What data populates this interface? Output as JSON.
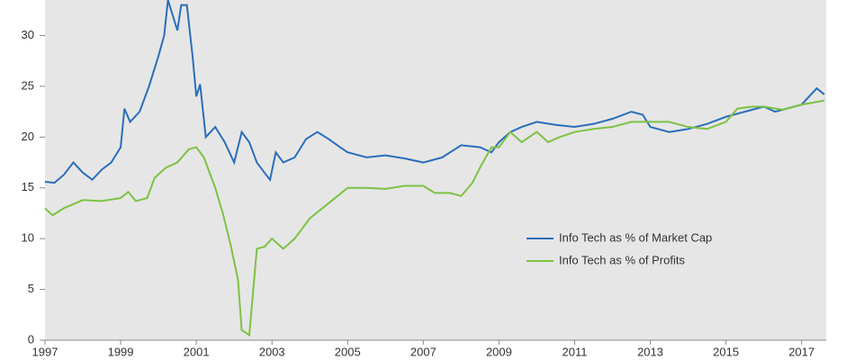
{
  "chart_data": {
    "type": "line",
    "xlim": [
      1997,
      2017.65
    ],
    "xticks": [
      1997,
      1999,
      2001,
      2003,
      2005,
      2007,
      2009,
      2011,
      2013,
      2015,
      2017
    ],
    "ylim": [
      0,
      33.5
    ],
    "yticks": [
      0,
      5,
      10,
      15,
      20,
      25,
      30
    ],
    "legend_position": "right",
    "series": [
      {
        "name": "Info Tech as % of Market Cap",
        "color": "#2a6ebb",
        "x": [
          1997.0,
          1997.25,
          1997.5,
          1997.75,
          1998.0,
          1998.25,
          1998.5,
          1998.75,
          1999.0,
          1999.1,
          1999.25,
          1999.5,
          1999.75,
          2000.0,
          2000.15,
          2000.25,
          2000.5,
          2000.6,
          2000.75,
          2000.9,
          2001.0,
          2001.1,
          2001.25,
          2001.5,
          2001.75,
          2002.0,
          2002.2,
          2002.4,
          2002.6,
          2002.8,
          2002.95,
          2003.1,
          2003.3,
          2003.6,
          2003.9,
          2004.2,
          2004.5,
          2004.8,
          2005.0,
          2005.5,
          2006.0,
          2006.5,
          2007.0,
          2007.5,
          2008.0,
          2008.5,
          2008.8,
          2009.0,
          2009.3,
          2009.6,
          2010.0,
          2010.5,
          2011.0,
          2011.5,
          2012.0,
          2012.5,
          2012.8,
          2013.0,
          2013.5,
          2014.0,
          2014.5,
          2015.0,
          2015.5,
          2016.0,
          2016.3,
          2016.6,
          2017.0,
          2017.4,
          2017.6
        ],
        "values": [
          15.6,
          15.5,
          16.3,
          17.5,
          16.5,
          15.8,
          16.8,
          17.5,
          19.0,
          22.8,
          21.5,
          22.5,
          25.0,
          28.0,
          30.0,
          33.5,
          30.5,
          33.0,
          33.0,
          28.0,
          24.0,
          25.2,
          20.0,
          21.0,
          19.5,
          17.5,
          20.5,
          19.5,
          17.5,
          16.5,
          15.8,
          18.5,
          17.5,
          18.0,
          19.8,
          20.5,
          19.8,
          19.0,
          18.5,
          18.0,
          18.2,
          17.9,
          17.5,
          18.0,
          19.2,
          19.0,
          18.5,
          19.5,
          20.5,
          21.0,
          21.5,
          21.2,
          21.0,
          21.3,
          21.8,
          22.5,
          22.2,
          21.0,
          20.5,
          20.8,
          21.3,
          22.0,
          22.5,
          23.0,
          22.5,
          22.8,
          23.2,
          24.8,
          24.2
        ]
      },
      {
        "name": "Info Tech as % of Profits",
        "color": "#7dc243",
        "x": [
          1997.0,
          1997.2,
          1997.5,
          1998.0,
          1998.5,
          1999.0,
          1999.2,
          1999.4,
          1999.7,
          1999.9,
          2000.2,
          2000.5,
          2000.8,
          2001.0,
          2001.2,
          2001.5,
          2001.7,
          2001.9,
          2002.1,
          2002.2,
          2002.4,
          2002.6,
          2002.8,
          2003.0,
          2003.3,
          2003.6,
          2004.0,
          2004.5,
          2005.0,
          2005.5,
          2006.0,
          2006.5,
          2007.0,
          2007.3,
          2007.7,
          2008.0,
          2008.3,
          2008.5,
          2008.8,
          2009.0,
          2009.3,
          2009.6,
          2010.0,
          2010.3,
          2010.6,
          2011.0,
          2011.5,
          2012.0,
          2012.5,
          2013.0,
          2013.5,
          2014.0,
          2014.5,
          2015.0,
          2015.3,
          2015.7,
          2016.0,
          2016.5,
          2017.0,
          2017.6
        ],
        "values": [
          13.0,
          12.3,
          13.0,
          13.8,
          13.7,
          14.0,
          14.6,
          13.7,
          14.0,
          16.0,
          17.0,
          17.5,
          18.8,
          19.0,
          18.0,
          15.0,
          12.5,
          9.5,
          6.0,
          1.0,
          0.5,
          9.0,
          9.2,
          10.0,
          9.0,
          10.0,
          12.0,
          13.5,
          15.0,
          15.0,
          14.9,
          15.2,
          15.2,
          14.5,
          14.5,
          14.2,
          15.5,
          17.0,
          19.0,
          19.0,
          20.5,
          19.5,
          20.5,
          19.5,
          20.0,
          20.5,
          20.8,
          21.0,
          21.5,
          21.5,
          21.5,
          21.0,
          20.8,
          21.5,
          22.8,
          23.0,
          23.0,
          22.7,
          23.2,
          23.6
        ]
      }
    ]
  }
}
